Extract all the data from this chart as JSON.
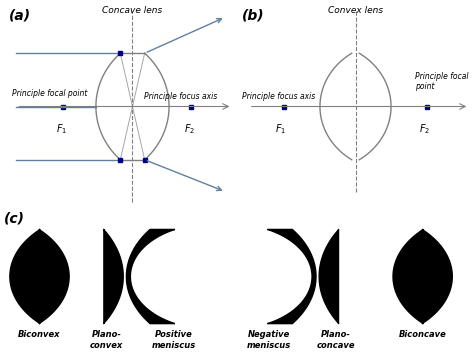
{
  "panel_a_label": "(a)",
  "panel_b_label": "(b)",
  "panel_c_label": "(c)",
  "concave_lens_label": "Concave lens",
  "convex_lens_label": "Convex lens",
  "principle_focal_point": "Principle focal point",
  "principle_focus_axis": "Principle focus axis",
  "principle_focal_point_b": "Principle focal\npoint",
  "F1": "$F_1$",
  "F2": "$F_2$",
  "lens_labels": [
    "Biconvex",
    "Plano-\nconvex",
    "Positive\nmeniscus",
    "Negative\nmeniscus",
    "Plano-\nconcave",
    "Biconcave"
  ],
  "bg_color": "#ffffff",
  "ray_color": "#6080a0",
  "dot_color": "#00008B"
}
